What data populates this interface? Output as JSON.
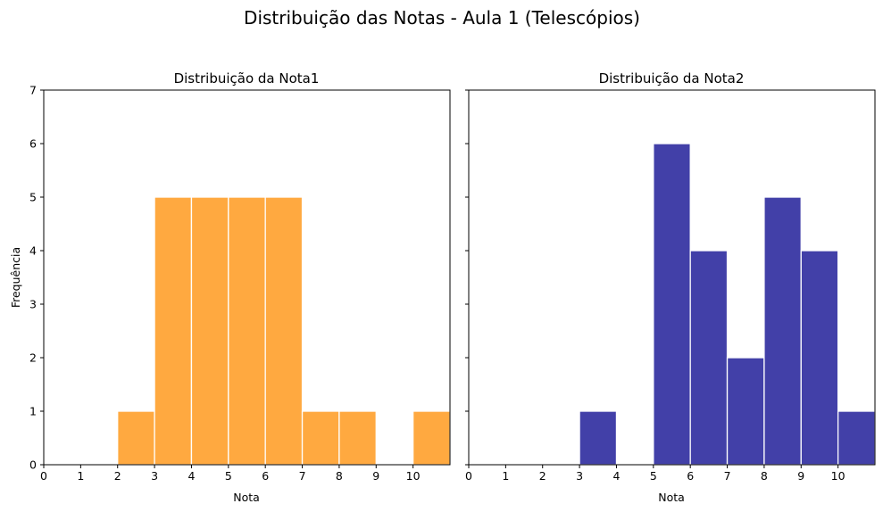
{
  "figure": {
    "title": "Distribuição das Notas - Aula 1 (Telescópios)"
  },
  "chart_data": [
    {
      "type": "bar",
      "title": "Distribuição da Nota1",
      "xlabel": "Nota",
      "ylabel": "Frequência",
      "xlim": [
        0,
        11
      ],
      "ylim": [
        0,
        7
      ],
      "xticks": [
        0,
        1,
        2,
        3,
        4,
        5,
        6,
        7,
        8,
        9,
        10
      ],
      "yticks": [
        0,
        1,
        2,
        3,
        4,
        5,
        6,
        7
      ],
      "bins": [
        [
          2,
          3
        ],
        [
          3,
          4
        ],
        [
          4,
          5
        ],
        [
          5,
          6
        ],
        [
          6,
          7
        ],
        [
          7,
          8
        ],
        [
          8,
          9
        ],
        [
          9,
          10
        ],
        [
          10,
          11
        ]
      ],
      "values": [
        1,
        5,
        5,
        5,
        5,
        1,
        1,
        0,
        1
      ],
      "color": "#ffa940",
      "edgecolor": "#ffffff"
    },
    {
      "type": "bar",
      "title": "Distribuição da Nota2",
      "xlabel": "Nota",
      "ylabel": "",
      "xlim": [
        0,
        11
      ],
      "ylim": [
        0,
        7
      ],
      "xticks": [
        0,
        1,
        2,
        3,
        4,
        5,
        6,
        7,
        8,
        9,
        10
      ],
      "yticks": [
        0,
        1,
        2,
        3,
        4,
        5,
        6,
        7
      ],
      "bins": [
        [
          3,
          4
        ],
        [
          4,
          5
        ],
        [
          5,
          6
        ],
        [
          6,
          7
        ],
        [
          7,
          8
        ],
        [
          8,
          9
        ],
        [
          9,
          10
        ],
        [
          10,
          11
        ]
      ],
      "values": [
        1,
        0,
        6,
        4,
        2,
        5,
        4,
        1
      ],
      "color": "#4240a8",
      "edgecolor": "#ffffff"
    }
  ]
}
